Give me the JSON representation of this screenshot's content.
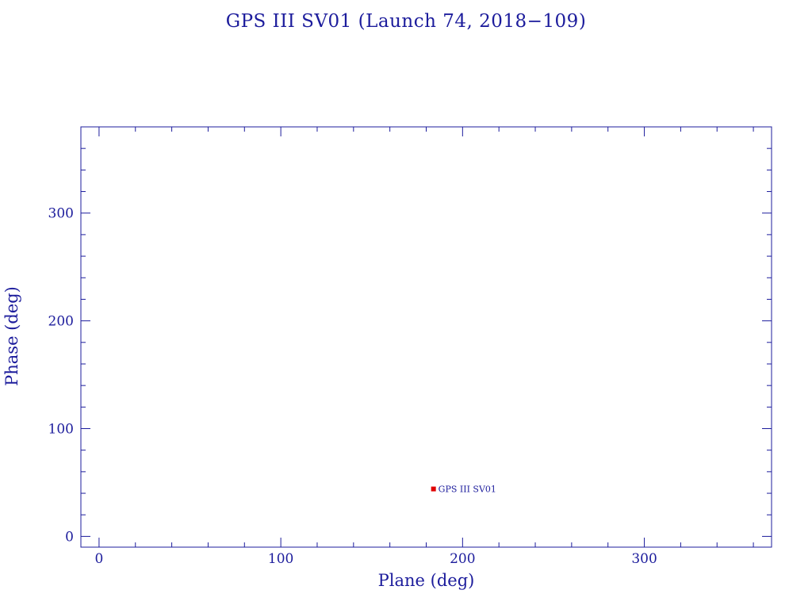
{
  "chart_data": {
    "type": "scatter",
    "title": "GPS III SV01 (Launch 74, 2018−109)",
    "xlabel": "Plane (deg)",
    "ylabel": "Phase (deg)",
    "xlim": [
      -10,
      370
    ],
    "ylim": [
      -10,
      380
    ],
    "xticks": [
      0,
      100,
      200,
      300
    ],
    "yticks": [
      0,
      100,
      200,
      300
    ],
    "minor_tick_step": 20,
    "grid": false,
    "legend": "none",
    "series": [
      {
        "points": [
          {
            "x": 184,
            "y": 44,
            "label": "GPS III SV01"
          }
        ]
      }
    ]
  },
  "colors": {
    "axis": "#1c1c9c",
    "point": "#e00000",
    "background": "#ffffff"
  }
}
